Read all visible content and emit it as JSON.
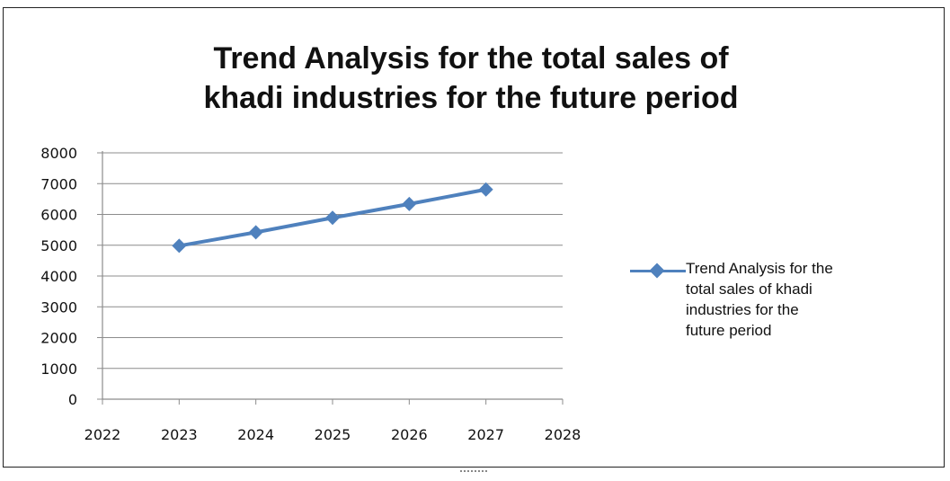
{
  "chart_data": {
    "type": "line",
    "title_lines": [
      "Trend Analysis for  the total sales of",
      "khadi industries for the future period"
    ],
    "x": [
      2023,
      2024,
      2025,
      2026,
      2027
    ],
    "series": [
      {
        "name_lines": [
          "Trend Analysis for  the",
          "total sales of khadi",
          "industries for the",
          "future period"
        ],
        "values": [
          4980,
          5420,
          5890,
          6340,
          6810
        ],
        "color": "#4f81bd"
      }
    ],
    "xlim": [
      2022,
      2028
    ],
    "ylim": [
      0,
      8000
    ],
    "x_ticks": [
      "2022",
      "2023",
      "2024",
      "2025",
      "2026",
      "2027",
      "2028"
    ],
    "y_ticks": [
      "0",
      "1000",
      "2000",
      "3000",
      "4000",
      "5000",
      "6000",
      "7000",
      "8000"
    ],
    "grid": "horizontal",
    "legend": "right"
  }
}
